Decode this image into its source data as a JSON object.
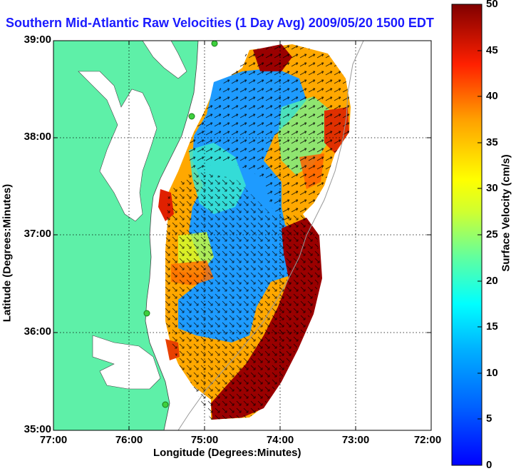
{
  "title": "Southern Mid-Atlantic Raw Velocities (1 Day Avg) 2009/05/20 1500 EDT",
  "axes": {
    "xlabel": "Longitude (Degrees:Minutes)",
    "ylabel": "Latitude (Degrees:Minutes)",
    "xticks": [
      "77:00",
      "76:00",
      "75:00",
      "74:00",
      "73:00",
      "72:00"
    ],
    "yticks": [
      "39:00",
      "38:00",
      "37:00",
      "36:00",
      "35:00"
    ]
  },
  "colorbar": {
    "label": "Surface Velocity (cm/s)",
    "ticks": [
      "50",
      "45",
      "40",
      "35",
      "30",
      "25",
      "20",
      "15",
      "10",
      "5",
      "0"
    ],
    "min": 0,
    "max": 50,
    "units": "cm/s"
  },
  "colors": {
    "land": "#5ef0a8",
    "title": "#1a1aff",
    "station": "#3dcf3d"
  }
}
